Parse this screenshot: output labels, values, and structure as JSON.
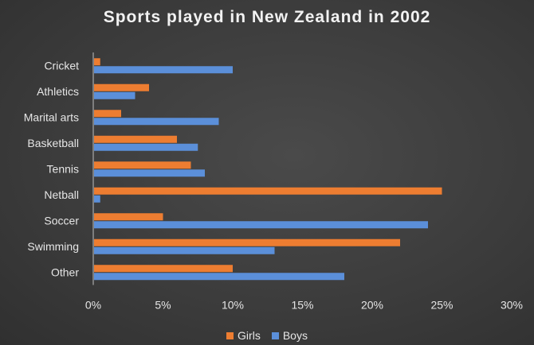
{
  "chart_data": {
    "type": "bar",
    "orientation": "horizontal",
    "title": "Sports played in New Zealand in 2002",
    "categories": [
      "Cricket",
      "Athletics",
      "Marital arts",
      "Basketball",
      "Tennis",
      "Netball",
      "Soccer",
      "Swimming",
      "Other"
    ],
    "series": [
      {
        "name": "Girls",
        "color": "#ed7d31",
        "values": [
          0.5,
          4,
          2,
          6,
          7,
          25,
          5,
          22,
          10
        ]
      },
      {
        "name": "Boys",
        "color": "#5b8fd9",
        "values": [
          10,
          3,
          9,
          7.5,
          8,
          0.5,
          24,
          13,
          18
        ]
      }
    ],
    "xlim": [
      0,
      30
    ],
    "xticks": [
      0,
      5,
      10,
      15,
      20,
      25,
      30
    ],
    "xtick_labels": [
      "0%",
      "5%",
      "10%",
      "15%",
      "20%",
      "25%",
      "30%"
    ],
    "legend_position": "bottom",
    "grid": false
  }
}
